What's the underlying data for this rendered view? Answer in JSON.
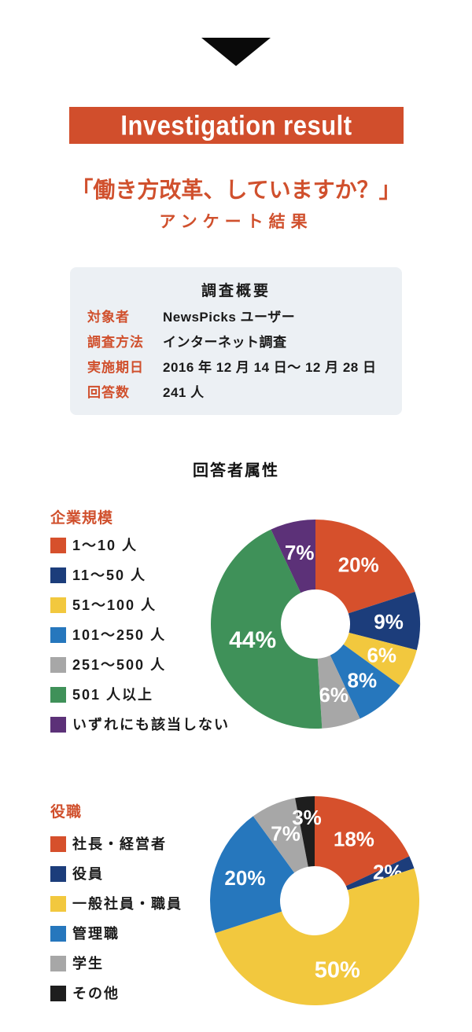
{
  "header": {
    "arrow_icon": "down-triangle",
    "banner_label": "Investigation result",
    "banner_color": "#d14e2c",
    "accent_color": "#d0502d",
    "title": "「働き方改革、していますか？」",
    "subtitle": "アンケート結果"
  },
  "survey_overview": {
    "title": "調査概要",
    "rows": [
      {
        "label": "対象者",
        "value": "NewsPicks ユーザー"
      },
      {
        "label": "調査方法",
        "value": "インターネット調査"
      },
      {
        "label": "実施期日",
        "value": "2016 年 12 月 14 日〜 12 月 28 日"
      },
      {
        "label": "回答数",
        "value": "241 人"
      }
    ]
  },
  "attributes_section": {
    "title": "回答者属性"
  },
  "chart_data": [
    {
      "type": "pie",
      "variant": "donut",
      "title": "企業規模",
      "unit": "%",
      "start_angle_deg": 0,
      "direction": "clockwise",
      "legend_position": "left",
      "slices": [
        {
          "label": "1〜10 人",
          "value": 20,
          "color": "#d6502c"
        },
        {
          "label": "11〜50 人",
          "value": 9,
          "color": "#1c3d7b"
        },
        {
          "label": "51〜100 人",
          "value": 6,
          "color": "#f2c83e"
        },
        {
          "label": "101〜250 人",
          "value": 8,
          "color": "#2677bd"
        },
        {
          "label": "251〜500 人",
          "value": 6,
          "color": "#a7a7a7"
        },
        {
          "label": "501 人以上",
          "value": 44,
          "color": "#3f9159",
          "label_r_factor": 0.62,
          "label_size": 30
        },
        {
          "label": "いずれにも該当しない",
          "value": 7,
          "color": "#5c3178"
        }
      ]
    },
    {
      "type": "pie",
      "variant": "donut",
      "title": "役職",
      "unit": "%",
      "start_angle_deg": 0,
      "direction": "clockwise",
      "legend_position": "left",
      "slices": [
        {
          "label": "社長・経営者",
          "value": 18,
          "color": "#d6502c"
        },
        {
          "label": "役員",
          "value": 2,
          "color": "#1c3d7b",
          "label_r_factor": 0.75
        },
        {
          "label": "一般社員・職員",
          "value": 50,
          "color": "#f2c83e",
          "label_size": 29
        },
        {
          "label": "管理職",
          "value": 20,
          "color": "#2677bd"
        },
        {
          "label": "学生",
          "value": 7,
          "color": "#a7a7a7"
        },
        {
          "label": "その他",
          "value": 3,
          "color": "#1e1e1e",
          "label_r_factor": 0.8
        }
      ]
    }
  ]
}
